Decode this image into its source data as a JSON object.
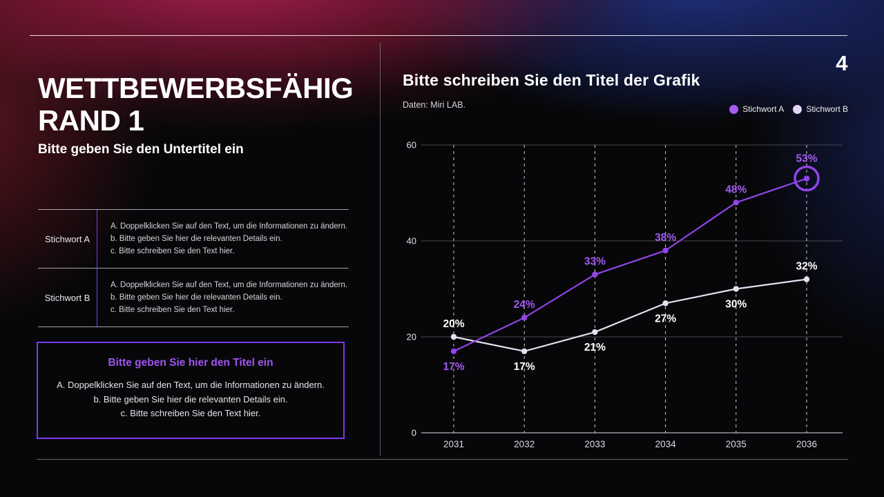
{
  "page": {
    "number": "4"
  },
  "left_panel": {
    "title_lines": [
      "WETTBEWERBSFÄHIG",
      "RAND 1"
    ],
    "subtitle": "Bitte geben Sie den Untertitel ein",
    "table": {
      "rows": [
        {
          "label": "Stichwort A",
          "lines": [
            "A. Doppelklicken Sie auf den Text, um die Informationen zu ändern.",
            "b. Bitte geben Sie hier die relevanten Details ein.",
            "c. Bitte schreiben Sie den Text hier."
          ]
        },
        {
          "label": "Stichwort B",
          "lines": [
            "A. Doppelklicken Sie auf den Text, um die Informationen zu ändern.",
            "b. Bitte geben Sie hier die relevanten Details ein.",
            "c. Bitte schreiben Sie den Text hier."
          ]
        }
      ]
    },
    "callout": {
      "title": "Bitte geben Sie hier den Titel ein",
      "lines": [
        "A. Doppelklicken Sie auf den Text, um die Informationen zu ändern.",
        "b. Bitte geben Sie hier die relevanten Details ein.",
        "c. Bitte schreiben Sie den Text hier."
      ]
    }
  },
  "colors": {
    "accent_purple": "#7C3AED",
    "series_a_line": "#9244E9",
    "series_b_line": "#E6E0F1"
  },
  "chart_data": {
    "type": "line",
    "title": "Bitte schreiben Sie den Titel der Grafik",
    "source": "Daten: Miri LAB.",
    "categories": [
      "2031",
      "2032",
      "2033",
      "2034",
      "2035",
      "2036"
    ],
    "series": [
      {
        "name": "Stichwort A",
        "line_color": "#9244E9",
        "legend_color": "#A65CF0",
        "label_color": "#A35BF0",
        "values": [
          17,
          24,
          33,
          38,
          48,
          53
        ],
        "labels": [
          "17%",
          "24%",
          "33%",
          "38%",
          "48%",
          "53%"
        ],
        "label_side": [
          "below",
          "above",
          "above",
          "above",
          "above",
          "above"
        ],
        "highlight_last_point": true
      },
      {
        "name": "Stichwort B",
        "line_color": "#E6E0F1",
        "legend_color": "#E3D3F7",
        "label_color": "#FFFFFF",
        "values": [
          20,
          17,
          21,
          27,
          30,
          32
        ],
        "labels": [
          "20%",
          "17%",
          "21%",
          "27%",
          "30%",
          "32%"
        ],
        "label_side": [
          "above",
          "below",
          "below",
          "below",
          "below",
          "above"
        ],
        "highlight_last_point": false
      }
    ],
    "xlabel": "",
    "ylabel": "",
    "ylim": [
      0,
      60
    ],
    "yticks": [
      0,
      20,
      40,
      60
    ],
    "grid": {
      "horizontal": "solid",
      "vertical": "dashed-per-category"
    },
    "legend_position": "top-right"
  }
}
